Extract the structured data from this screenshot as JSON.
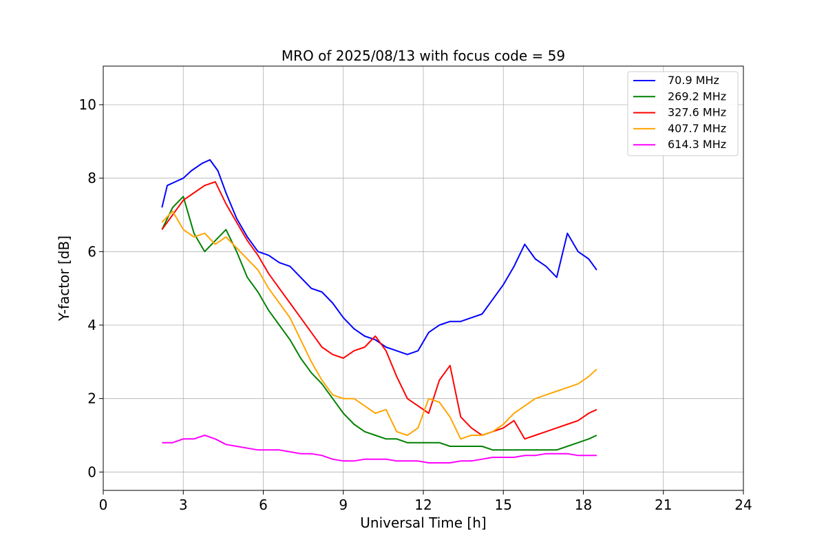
{
  "chart_data": {
    "type": "line",
    "title": "MRO of 2025/08/13 with focus code = 59",
    "xlabel": "Universal Time [h]",
    "ylabel": "Y-factor [dB]",
    "xlim": [
      0,
      24
    ],
    "ylim": [
      -0.5,
      11.05
    ],
    "xticks": [
      0,
      3,
      6,
      9,
      12,
      15,
      18,
      21,
      24
    ],
    "xtick_labels": [
      "0",
      "3",
      "6",
      "9",
      "12",
      "15",
      "18",
      "21",
      "24"
    ],
    "yticks": [
      0,
      2,
      4,
      6,
      8,
      10
    ],
    "ytick_labels": [
      "0",
      "2",
      "4",
      "6",
      "8",
      "10"
    ],
    "grid": true,
    "legend_position": "top-right",
    "series": [
      {
        "name": " 70.9 MHz",
        "color": "#0000ff",
        "x": [
          2.2,
          2.4,
          2.7,
          3.0,
          3.3,
          3.7,
          4.0,
          4.3,
          4.6,
          5.0,
          5.4,
          5.8,
          6.2,
          6.6,
          7.0,
          7.4,
          7.8,
          8.2,
          8.6,
          9.0,
          9.4,
          9.8,
          10.2,
          10.6,
          11.0,
          11.4,
          11.8,
          12.2,
          12.6,
          13.0,
          13.4,
          13.8,
          14.2,
          14.6,
          15.0,
          15.4,
          15.8,
          16.2,
          16.6,
          17.0,
          17.4,
          17.8,
          18.2,
          18.5
        ],
        "y": [
          7.2,
          7.8,
          7.9,
          8.0,
          8.2,
          8.4,
          8.5,
          8.2,
          7.6,
          6.9,
          6.4,
          6.0,
          5.9,
          5.7,
          5.6,
          5.3,
          5.0,
          4.9,
          4.6,
          4.2,
          3.9,
          3.7,
          3.6,
          3.4,
          3.3,
          3.2,
          3.3,
          3.8,
          4.0,
          4.1,
          4.1,
          4.2,
          4.3,
          4.7,
          5.1,
          5.6,
          6.2,
          5.8,
          5.6,
          5.3,
          6.5,
          6.0,
          5.8,
          5.5
        ]
      },
      {
        "name": "269.2 MHz",
        "color": "#008000",
        "x": [
          2.2,
          2.6,
          3.0,
          3.4,
          3.8,
          4.2,
          4.6,
          5.0,
          5.4,
          5.8,
          6.2,
          6.6,
          7.0,
          7.4,
          7.8,
          8.2,
          8.6,
          9.0,
          9.4,
          9.8,
          10.2,
          10.6,
          11.0,
          11.4,
          11.8,
          12.2,
          12.6,
          13.0,
          13.4,
          13.8,
          14.2,
          14.6,
          15.0,
          15.4,
          15.8,
          16.2,
          16.6,
          17.0,
          17.4,
          17.8,
          18.2,
          18.5
        ],
        "y": [
          6.6,
          7.2,
          7.5,
          6.5,
          6.0,
          6.3,
          6.6,
          6.0,
          5.3,
          4.9,
          4.4,
          4.0,
          3.6,
          3.1,
          2.7,
          2.4,
          2.0,
          1.6,
          1.3,
          1.1,
          1.0,
          0.9,
          0.9,
          0.8,
          0.8,
          0.8,
          0.8,
          0.7,
          0.7,
          0.7,
          0.7,
          0.6,
          0.6,
          0.6,
          0.6,
          0.6,
          0.6,
          0.6,
          0.7,
          0.8,
          0.9,
          1.0
        ]
      },
      {
        "name": "327.6 MHz",
        "color": "#ff0000",
        "x": [
          2.2,
          2.6,
          3.0,
          3.4,
          3.8,
          4.2,
          4.6,
          5.0,
          5.4,
          5.8,
          6.2,
          6.6,
          7.0,
          7.4,
          7.8,
          8.2,
          8.6,
          9.0,
          9.4,
          9.8,
          10.2,
          10.6,
          11.0,
          11.4,
          11.8,
          12.2,
          12.6,
          13.0,
          13.4,
          13.8,
          14.2,
          14.6,
          15.0,
          15.4,
          15.8,
          16.2,
          16.6,
          17.0,
          17.4,
          17.8,
          18.2,
          18.5
        ],
        "y": [
          6.6,
          7.0,
          7.4,
          7.6,
          7.8,
          7.9,
          7.3,
          6.8,
          6.3,
          5.9,
          5.4,
          5.0,
          4.6,
          4.2,
          3.8,
          3.4,
          3.2,
          3.1,
          3.3,
          3.4,
          3.7,
          3.3,
          2.6,
          2.0,
          1.8,
          1.6,
          2.5,
          2.9,
          1.5,
          1.2,
          1.0,
          1.1,
          1.2,
          1.4,
          0.9,
          1.0,
          1.1,
          1.2,
          1.3,
          1.4,
          1.6,
          1.7
        ]
      },
      {
        "name": "407.7 MHz",
        "color": "#ffa500",
        "x": [
          2.2,
          2.6,
          3.0,
          3.4,
          3.8,
          4.2,
          4.6,
          5.0,
          5.4,
          5.8,
          6.2,
          6.6,
          7.0,
          7.4,
          7.8,
          8.2,
          8.6,
          9.0,
          9.4,
          9.8,
          10.2,
          10.6,
          11.0,
          11.4,
          11.8,
          12.2,
          12.6,
          13.0,
          13.4,
          13.8,
          14.2,
          14.6,
          15.0,
          15.4,
          15.8,
          16.2,
          16.6,
          17.0,
          17.4,
          17.8,
          18.2,
          18.5
        ],
        "y": [
          6.8,
          7.1,
          6.6,
          6.4,
          6.5,
          6.2,
          6.4,
          6.1,
          5.8,
          5.5,
          5.0,
          4.6,
          4.2,
          3.6,
          3.0,
          2.5,
          2.1,
          2.0,
          2.0,
          1.8,
          1.6,
          1.7,
          1.1,
          1.0,
          1.2,
          2.0,
          1.9,
          1.5,
          0.9,
          1.0,
          1.0,
          1.1,
          1.3,
          1.6,
          1.8,
          2.0,
          2.1,
          2.2,
          2.3,
          2.4,
          2.6,
          2.8
        ]
      },
      {
        "name": "614.3 MHz",
        "color": "#ff00ff",
        "x": [
          2.2,
          2.6,
          3.0,
          3.4,
          3.8,
          4.2,
          4.6,
          5.0,
          5.4,
          5.8,
          6.2,
          6.6,
          7.0,
          7.4,
          7.8,
          8.2,
          8.6,
          9.0,
          9.4,
          9.8,
          10.2,
          10.6,
          11.0,
          11.4,
          11.8,
          12.2,
          12.6,
          13.0,
          13.4,
          13.8,
          14.2,
          14.6,
          15.0,
          15.4,
          15.8,
          16.2,
          16.6,
          17.0,
          17.4,
          17.8,
          18.2,
          18.5
        ],
        "y": [
          0.8,
          0.8,
          0.9,
          0.9,
          1.0,
          0.9,
          0.75,
          0.7,
          0.65,
          0.6,
          0.6,
          0.6,
          0.55,
          0.5,
          0.5,
          0.45,
          0.35,
          0.3,
          0.3,
          0.35,
          0.35,
          0.35,
          0.3,
          0.3,
          0.3,
          0.25,
          0.25,
          0.25,
          0.3,
          0.3,
          0.35,
          0.4,
          0.4,
          0.4,
          0.45,
          0.45,
          0.5,
          0.5,
          0.5,
          0.45,
          0.45,
          0.45
        ]
      }
    ]
  }
}
